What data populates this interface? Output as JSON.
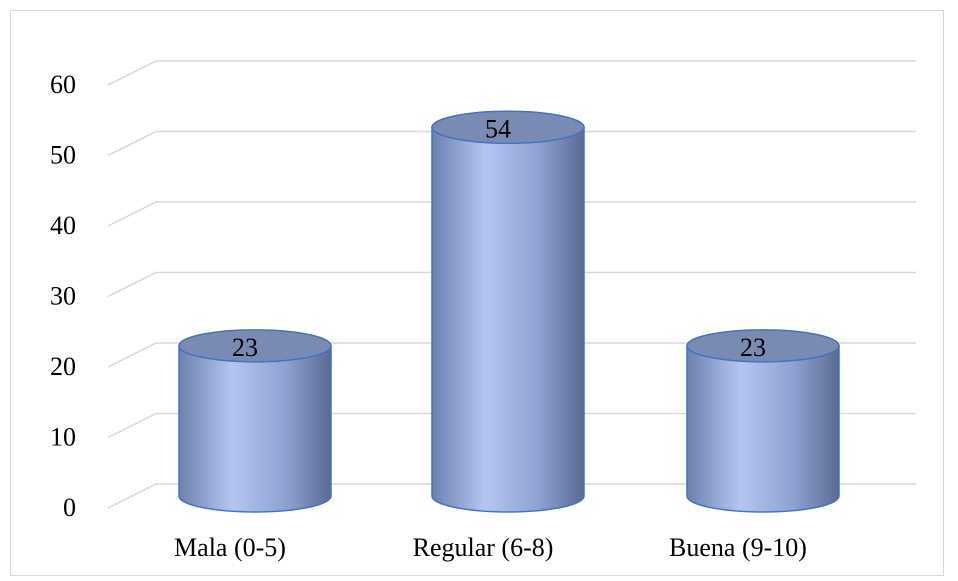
{
  "chart_data": {
    "type": "bar",
    "title": "",
    "xlabel": "",
    "ylabel": "",
    "categories": [
      "Mala (0-5)",
      "Regular (6-8)",
      "Buena (9-10)"
    ],
    "values": [
      23,
      54,
      23
    ],
    "data_labels": [
      "23",
      "54",
      "23"
    ],
    "ylim": [
      0,
      60
    ],
    "yticks": [
      "0",
      "10",
      "20",
      "30",
      "40",
      "50",
      "60"
    ],
    "grid": true,
    "legend": "none",
    "style": "3d-cylinder",
    "colors": {
      "bar": "#8fa8e0",
      "bar_dark": "#5b6e9c",
      "top": "#7a8bb3",
      "outline": "#4472c4",
      "grid": "#d9d9d9"
    }
  }
}
